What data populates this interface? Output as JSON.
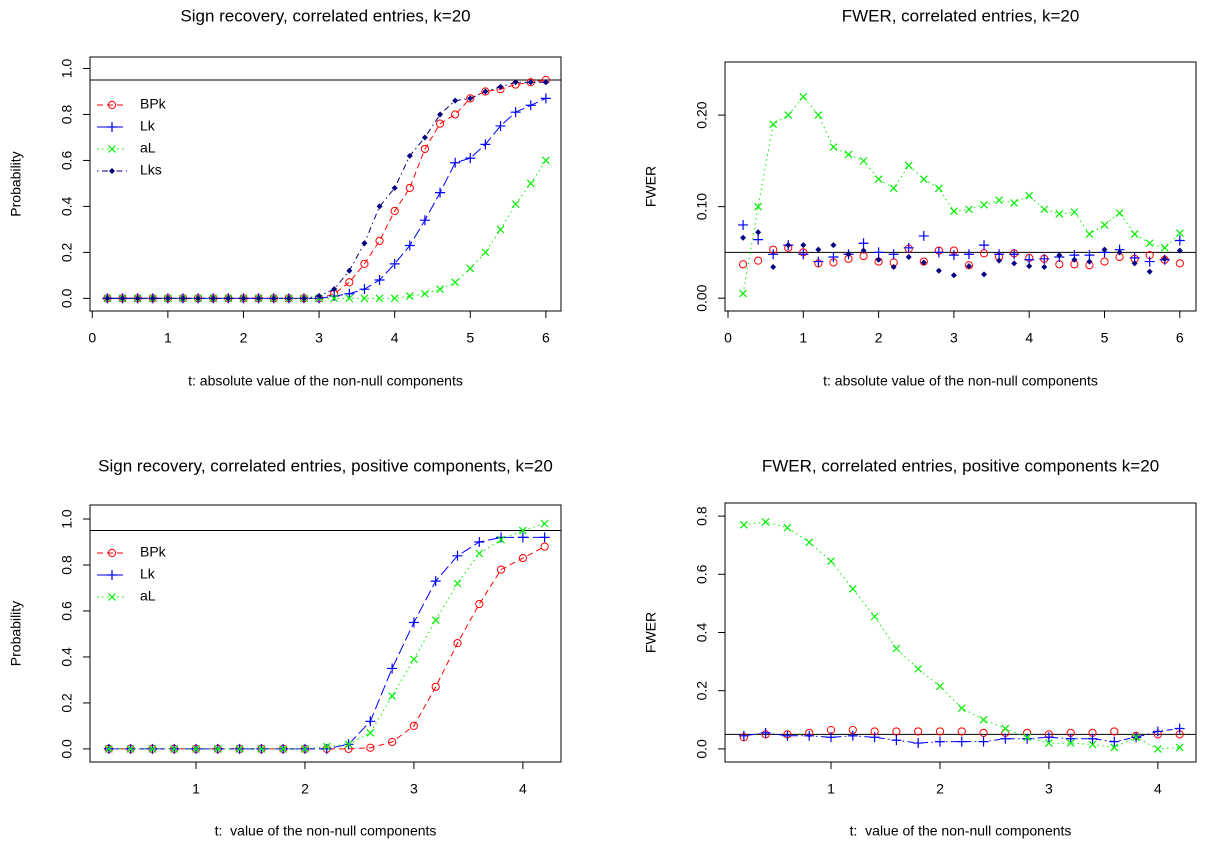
{
  "chart_data": [
    {
      "type": "line",
      "title": "Sign recovery, correlated entries, k=20",
      "xlabel": "t: absolute value of the non-null components",
      "ylabel": "Probability",
      "x": [
        0.2,
        0.4,
        0.6,
        0.8,
        1.0,
        1.2,
        1.4,
        1.6,
        1.8,
        2.0,
        2.2,
        2.4,
        2.6,
        2.8,
        3.0,
        3.2,
        3.4,
        3.6,
        3.8,
        4.0,
        4.2,
        4.4,
        4.6,
        4.8,
        5.0,
        5.2,
        5.4,
        5.6,
        5.8,
        6.0
      ],
      "xlim": [
        -0.03,
        6.2
      ],
      "xticks": [
        0,
        1,
        2,
        3,
        4,
        5,
        6
      ],
      "ylim": [
        -0.055,
        1.05
      ],
      "yticks": [
        {
          "value": 0,
          "label": "0.0"
        },
        0.2,
        0.4,
        0.6,
        0.8,
        {
          "value": 1,
          "label": "1.0"
        }
      ],
      "hline": 0.95,
      "legend": "topleft",
      "series": [
        {
          "name": "BPk",
          "color": "#ff0000",
          "marker": "circle",
          "linestyle": "dashed",
          "values": [
            0,
            0,
            0,
            0,
            0,
            0,
            0,
            0,
            0,
            0,
            0,
            0,
            0,
            0,
            0,
            0.02,
            0.07,
            0.15,
            0.25,
            0.38,
            0.48,
            0.65,
            0.76,
            0.8,
            0.87,
            0.9,
            0.91,
            0.93,
            0.94,
            0.95
          ]
        },
        {
          "name": "Lk",
          "color": "#0000ff",
          "marker": "plus",
          "linestyle": "longdash",
          "values": [
            0,
            0,
            0,
            0,
            0,
            0,
            0,
            0,
            0,
            0,
            0,
            0,
            0,
            0,
            0,
            0.01,
            0.02,
            0.04,
            0.08,
            0.15,
            0.23,
            0.34,
            0.46,
            0.59,
            0.61,
            0.67,
            0.75,
            0.81,
            0.84,
            0.87
          ]
        },
        {
          "name": "aL",
          "color": "#00ee00",
          "marker": "x",
          "linestyle": "dotted",
          "values": [
            0,
            0,
            0,
            0,
            0,
            0,
            0,
            0,
            0,
            0,
            0,
            0,
            0,
            0,
            0,
            0,
            0,
            0,
            0,
            0,
            0.01,
            0.02,
            0.04,
            0.07,
            0.13,
            0.2,
            0.3,
            0.41,
            0.5,
            0.6
          ]
        },
        {
          "name": "Lks",
          "color": "#000080",
          "marker": "diamond",
          "linestyle": "dotdash",
          "values": [
            0,
            0,
            0,
            0,
            0,
            0,
            0,
            0,
            0,
            0,
            0,
            0,
            0,
            0,
            0.01,
            0.04,
            0.12,
            0.24,
            0.4,
            0.48,
            0.62,
            0.7,
            0.8,
            0.86,
            0.87,
            0.9,
            0.92,
            0.94,
            0.94,
            0.94
          ]
        }
      ]
    },
    {
      "type": "line",
      "title": "FWER, correlated entries, k=20",
      "xlabel": "t: absolute value of the non-null components",
      "ylabel": "FWER",
      "x": [
        0.2,
        0.4,
        0.6,
        0.8,
        1.0,
        1.2,
        1.4,
        1.6,
        1.8,
        2.0,
        2.2,
        2.4,
        2.6,
        2.8,
        3.0,
        3.2,
        3.4,
        3.6,
        3.8,
        4.0,
        4.2,
        4.4,
        4.6,
        4.8,
        5.0,
        5.2,
        5.4,
        5.6,
        5.8,
        6.0
      ],
      "xlim": [
        -0.04,
        6.215
      ],
      "xticks": [
        0,
        1,
        2,
        3,
        4,
        5,
        6
      ],
      "ylim": [
        -0.014,
        0.258
      ],
      "yticks": [
        {
          "value": 0,
          "label": "0.00"
        },
        {
          "value": 0.1,
          "label": "0.10"
        },
        {
          "value": 0.2,
          "label": "0.20"
        }
      ],
      "hline": 0.05,
      "series": [
        {
          "color": "#ff0000",
          "marker": "circle",
          "linestyle": "none",
          "values": [
            0.037,
            0.041,
            0.053,
            0.055,
            0.05,
            0.038,
            0.039,
            0.043,
            0.046,
            0.04,
            0.039,
            0.054,
            0.04,
            0.052,
            0.052,
            0.036,
            0.049,
            0.045,
            0.049,
            0.044,
            0.043,
            0.037,
            0.037,
            0.036,
            0.04,
            0.045,
            0.043,
            0.047,
            0.042,
            0.038
          ]
        },
        {
          "color": "#0000ff",
          "marker": "plus",
          "linestyle": "none",
          "values": [
            0.08,
            0.064,
            0.048,
            0.058,
            0.048,
            0.04,
            0.045,
            0.048,
            0.06,
            0.05,
            0.048,
            0.055,
            0.068,
            0.05,
            0.047,
            0.048,
            0.058,
            0.048,
            0.048,
            0.042,
            0.043,
            0.045,
            0.047,
            0.047,
            0.05,
            0.053,
            0.044,
            0.04,
            0.042,
            0.063
          ]
        },
        {
          "color": "#00ee00",
          "marker": "x",
          "linestyle": "dotted",
          "values": [
            0.005,
            0.1,
            0.19,
            0.2,
            0.22,
            0.2,
            0.165,
            0.157,
            0.15,
            0.13,
            0.12,
            0.145,
            0.13,
            0.12,
            0.095,
            0.097,
            0.102,
            0.107,
            0.104,
            0.112,
            0.097,
            0.092,
            0.094,
            0.07,
            0.08,
            0.093,
            0.07,
            0.06,
            0.055,
            0.071
          ]
        },
        {
          "color": "#000080",
          "marker": "diamond",
          "linestyle": "none",
          "values": [
            0.066,
            0.072,
            0.034,
            0.058,
            0.058,
            0.053,
            0.058,
            0.048,
            0.052,
            0.042,
            0.034,
            0.045,
            0.039,
            0.03,
            0.025,
            0.035,
            0.026,
            0.041,
            0.038,
            0.035,
            0.034,
            0.047,
            0.042,
            0.04,
            0.053,
            0.05,
            0.038,
            0.029,
            0.043,
            0.052
          ]
        }
      ]
    },
    {
      "type": "line",
      "title": "Sign recovery, correlated entries, positive components, k=20",
      "xlabel": "t:  value of the non-null components",
      "ylabel": "Probability",
      "x": [
        0.2,
        0.4,
        0.6,
        0.8,
        1.0,
        1.2,
        1.4,
        1.6,
        1.8,
        2.0,
        2.2,
        2.4,
        2.6,
        2.8,
        3.0,
        3.2,
        3.4,
        3.6,
        3.8,
        4.0,
        4.2
      ],
      "xlim": [
        0.027,
        4.35
      ],
      "xticks": [
        1,
        2,
        3,
        4
      ],
      "ylim": [
        -0.057,
        1.061
      ],
      "yticks": [
        {
          "value": 0,
          "label": "0.0"
        },
        0.2,
        0.4,
        0.6,
        0.8,
        {
          "value": 1,
          "label": "1.0"
        }
      ],
      "hline": 0.95,
      "legend": "topleft",
      "series": [
        {
          "name": "BPk",
          "color": "#ff0000",
          "marker": "circle",
          "linestyle": "dashed",
          "values": [
            0,
            0,
            0,
            0,
            0,
            0,
            0,
            0,
            0,
            0,
            0,
            0,
            0.005,
            0.03,
            0.1,
            0.27,
            0.46,
            0.63,
            0.78,
            0.83,
            0.88
          ]
        },
        {
          "name": "Lk",
          "color": "#0000ff",
          "marker": "plus",
          "linestyle": "longdash",
          "values": [
            0,
            0,
            0,
            0,
            0,
            0,
            0,
            0,
            0,
            0,
            0,
            0.02,
            0.12,
            0.35,
            0.55,
            0.73,
            0.84,
            0.9,
            0.92,
            0.92,
            0.92
          ]
        },
        {
          "name": "aL",
          "color": "#00ee00",
          "marker": "x",
          "linestyle": "dotted",
          "values": [
            0,
            0,
            0,
            0,
            0,
            0,
            0,
            0,
            0,
            0,
            0.01,
            0.02,
            0.07,
            0.23,
            0.39,
            0.56,
            0.72,
            0.85,
            0.91,
            0.95,
            0.98
          ]
        }
      ]
    },
    {
      "type": "line",
      "title": "FWER, correlated entries, positive components k=20",
      "xlabel": "t:  value of the non-null components",
      "ylabel": "FWER",
      "x": [
        0.2,
        0.4,
        0.6,
        0.8,
        1.0,
        1.2,
        1.4,
        1.6,
        1.8,
        2.0,
        2.2,
        2.4,
        2.6,
        2.8,
        3.0,
        3.2,
        3.4,
        3.6,
        3.8,
        4.0,
        4.2
      ],
      "xlim": [
        0.027,
        4.35
      ],
      "xticks": [
        1,
        2,
        3,
        4
      ],
      "ylim": [
        -0.045,
        0.845
      ],
      "yticks": [
        {
          "value": 0,
          "label": "0.0"
        },
        0.2,
        0.4,
        0.6,
        0.8
      ],
      "hline": 0.05,
      "series": [
        {
          "color": "#ff0000",
          "marker": "circle",
          "linestyle": "none",
          "values": [
            0.04,
            0.05,
            0.05,
            0.055,
            0.065,
            0.065,
            0.06,
            0.06,
            0.06,
            0.06,
            0.06,
            0.055,
            0.055,
            0.055,
            0.05,
            0.055,
            0.055,
            0.06,
            0.045,
            0.05,
            0.05
          ]
        },
        {
          "color": "#0000ff",
          "marker": "plus",
          "linestyle": "dotdash",
          "values": [
            0.045,
            0.055,
            0.045,
            0.045,
            0.04,
            0.045,
            0.04,
            0.03,
            0.02,
            0.025,
            0.025,
            0.025,
            0.035,
            0.035,
            0.04,
            0.035,
            0.035,
            0.025,
            0.04,
            0.06,
            0.07
          ]
        },
        {
          "color": "#00ee00",
          "marker": "x",
          "linestyle": "dotted",
          "values": [
            0.77,
            0.78,
            0.76,
            0.71,
            0.645,
            0.55,
            0.455,
            0.345,
            0.275,
            0.215,
            0.14,
            0.1,
            0.07,
            0.04,
            0.02,
            0.02,
            0.015,
            0.005,
            0.04,
            0,
            0.005
          ]
        }
      ]
    }
  ]
}
